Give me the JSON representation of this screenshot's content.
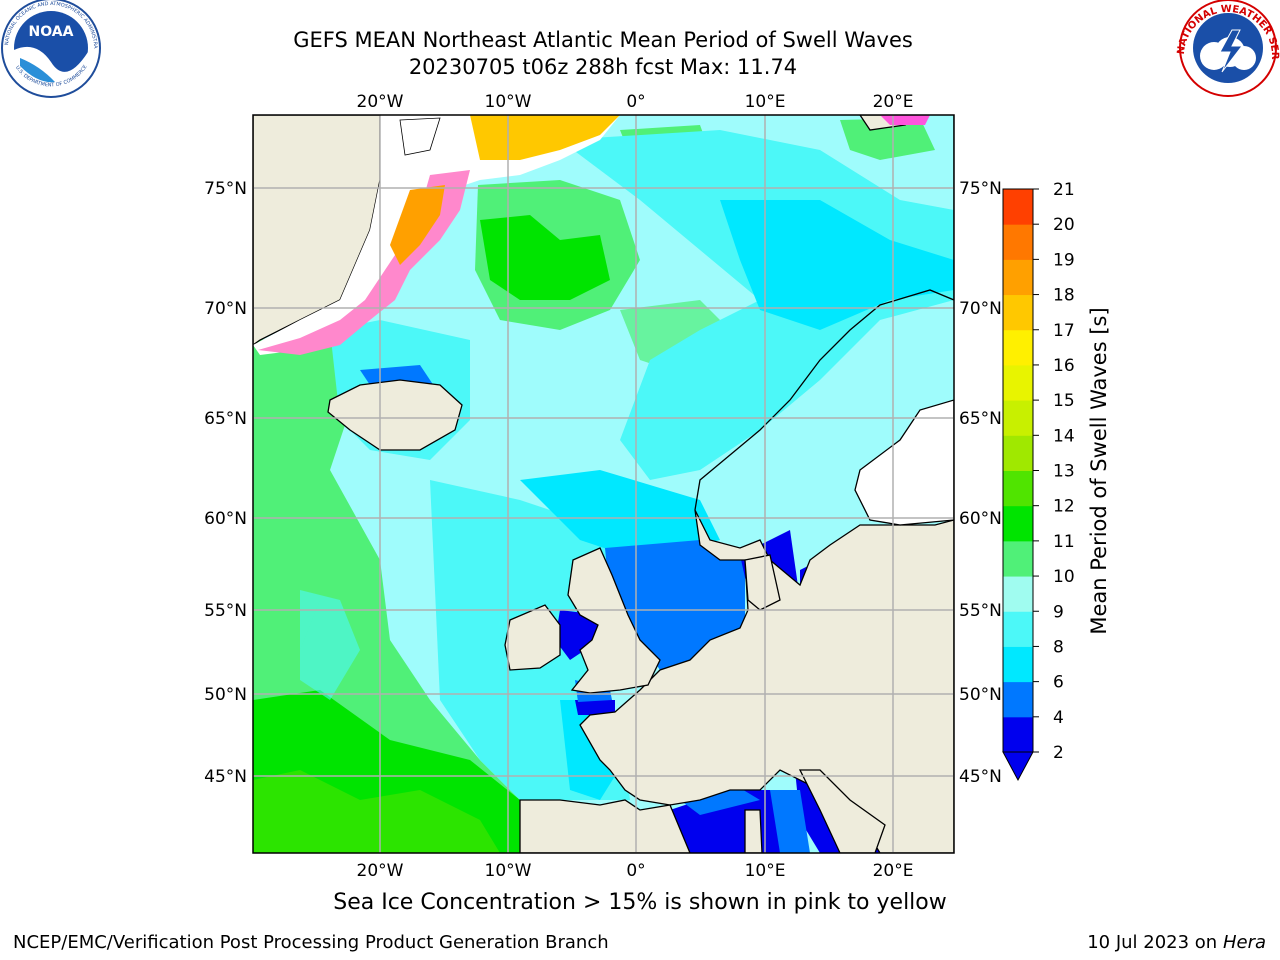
{
  "title": {
    "line1": "GEFS MEAN Northeast Atlantic Mean Period of Swell Waves",
    "line2": "20230705 t06z 288h fcst   Max: 11.74"
  },
  "caption": "Sea Ice Concentration > 15% is shown in pink to yellow",
  "footer": {
    "left": "NCEP/EMC/Verification Post Processing Product Generation Branch",
    "right_date": "10 Jul 2023 on ",
    "right_machine": "Hera"
  },
  "logos": {
    "noaa": {
      "name": "NOAA",
      "ring_text": "NATIONAL OCEANIC AND ATMOSPHERIC ADMINISTRATION",
      "bottom_text": "U.S. DEPARTMENT OF COMMERCE"
    },
    "nws": {
      "ring_text": "NATIONAL WEATHER SERVICE"
    }
  },
  "map": {
    "lon_ticks_top": [
      "20°W",
      "10°W",
      "0°",
      "10°E",
      "20°E"
    ],
    "lon_ticks_bottom": [
      "20°W",
      "10°W",
      "0°",
      "10°E",
      "20°E"
    ],
    "lat_ticks_left": [
      "75°N",
      "70°N",
      "65°N",
      "60°N",
      "55°N",
      "50°N",
      "45°N"
    ],
    "lat_ticks_right": [
      "75°N",
      "70°N",
      "65°N",
      "60°N",
      "55°N",
      "50°N",
      "45°N"
    ],
    "colors": {
      "land": "#eeecdc",
      "ocean_default": "#9ffcfc",
      "grid": "#b0b0b0"
    }
  },
  "colorbar": {
    "label": "Mean Period of Swell Waves [s]",
    "tick_labels": [
      "2",
      "4",
      "6",
      "8",
      "9",
      "10",
      "11",
      "12",
      "13",
      "14",
      "15",
      "16",
      "17",
      "18",
      "19",
      "20",
      "21"
    ],
    "colors": [
      "#0000ee",
      "#0078ff",
      "#00e8ff",
      "#4cf8f8",
      "#a0fcf0",
      "#50f078",
      "#00e400",
      "#50e400",
      "#a0e800",
      "#c8f000",
      "#e8f400",
      "#fff000",
      "#ffc800",
      "#ffa000",
      "#ff7800",
      "#ff4000",
      "#ff0000"
    ],
    "extend_color": "#0000ee"
  }
}
